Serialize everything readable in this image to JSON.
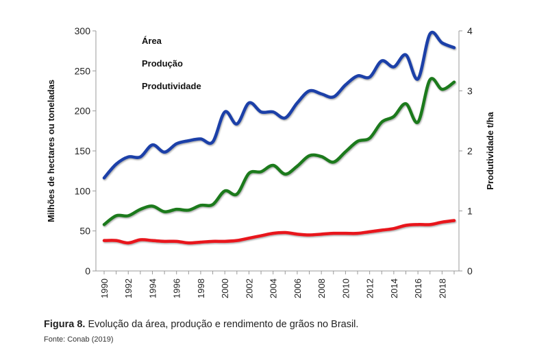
{
  "chart_data": {
    "type": "line",
    "x": [
      1990,
      1991,
      1992,
      1993,
      1994,
      1995,
      1996,
      1997,
      1998,
      1999,
      2000,
      2001,
      2002,
      2003,
      2004,
      2005,
      2006,
      2007,
      2008,
      2009,
      2010,
      2011,
      2012,
      2013,
      2014,
      2015,
      2016,
      2017,
      2018,
      2019
    ],
    "series": [
      {
        "name": "Área",
        "axis": "left",
        "color": "#e8121b",
        "values": [
          38,
          38,
          35,
          39,
          38,
          37,
          37,
          35,
          36,
          37,
          37,
          38,
          41,
          44,
          47,
          48,
          46,
          45,
          46,
          47,
          47,
          47,
          49,
          51,
          53,
          57,
          58,
          58,
          61,
          63
        ]
      },
      {
        "name": "Produção",
        "axis": "left",
        "color": "#1c7a1c",
        "values": [
          58,
          69,
          69,
          77,
          81,
          74,
          77,
          76,
          82,
          83,
          100,
          96,
          122,
          124,
          132,
          121,
          131,
          144,
          143,
          136,
          149,
          162,
          166,
          186,
          193,
          209,
          186,
          239,
          227,
          236
        ]
      },
      {
        "name": "Produtividade",
        "axis": "right",
        "color": "#1a3fa8",
        "values": [
          1.55,
          1.78,
          1.9,
          1.9,
          2.1,
          1.98,
          2.12,
          2.17,
          2.2,
          2.15,
          2.65,
          2.45,
          2.8,
          2.65,
          2.65,
          2.55,
          2.8,
          3.0,
          2.95,
          2.9,
          3.1,
          3.25,
          3.23,
          3.5,
          3.4,
          3.6,
          3.2,
          3.95,
          3.8,
          3.72
        ]
      }
    ],
    "ylabel": "Milhões de hectares ou toneladas",
    "y2label": "Produtividade t/ha",
    "ylim": [
      0,
      300
    ],
    "y2lim": [
      0,
      4
    ],
    "yticks": [
      "0",
      "50",
      "100",
      "150",
      "200",
      "250",
      "300"
    ],
    "y2ticks": [
      "0",
      "1",
      "2",
      "3",
      "4"
    ],
    "xticks": [
      "1990",
      "1992",
      "1994",
      "1996",
      "1998",
      "2000",
      "2002",
      "2004",
      "2006",
      "2008",
      "2010",
      "2012",
      "2014",
      "2016",
      "2018"
    ],
    "legend_position": "top-left",
    "grid": false
  },
  "caption": {
    "label": "Figura 8.",
    "text": " Evolução da área, produção e rendimento de grãos no Brasil."
  },
  "source": "Fonte: Conab (2019)"
}
